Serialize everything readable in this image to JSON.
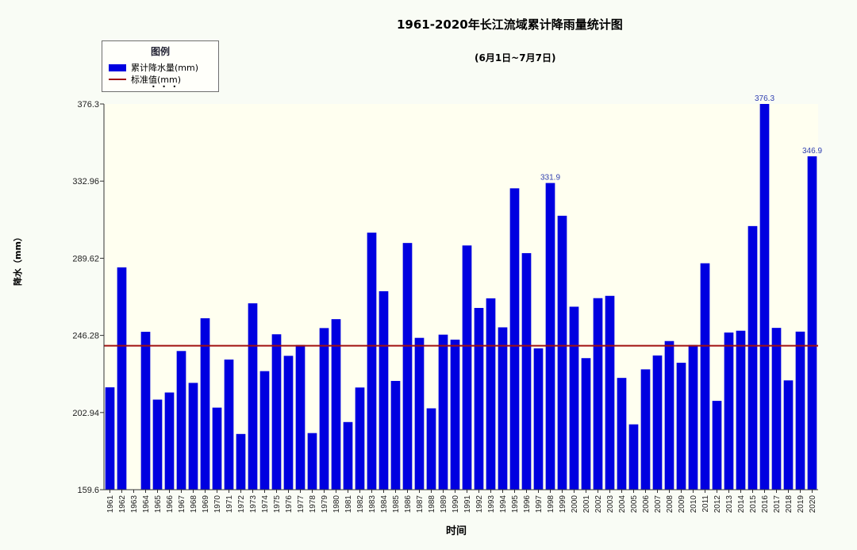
{
  "chart_data": {
    "type": "bar",
    "title": "1961-2020年长江流域累计降雨量统计图",
    "subtitle": "(6月1日~7月7日)",
    "xlabel": "时间",
    "ylabel": "降水（mm）",
    "ylim": [
      159.6,
      376.3
    ],
    "yticks": [
      "376.3",
      "332.96",
      "289.62",
      "246.28",
      "202.94",
      "159.6"
    ],
    "ytick_values": [
      376.3,
      332.96,
      289.62,
      246.28,
      202.94,
      159.6
    ],
    "legend_title": "图例",
    "legend_placement": "top-left",
    "series": [
      {
        "name": "累计降水量(mm)",
        "color": "#0000e0"
      },
      {
        "name": "标准值(mm)",
        "color": "#a01010",
        "value": 240.5
      }
    ],
    "categories": [
      "1961",
      "1962",
      "1963",
      "1964",
      "1965",
      "1966",
      "1967",
      "1968",
      "1969",
      "1970",
      "1971",
      "1972",
      "1973",
      "1974",
      "1975",
      "1976",
      "1977",
      "1978",
      "1979",
      "1980",
      "1981",
      "1982",
      "1983",
      "1984",
      "1985",
      "1986",
      "1987",
      "1988",
      "1989",
      "1990",
      "1991",
      "1992",
      "1993",
      "1994",
      "1995",
      "1996",
      "1997",
      "1998",
      "1999",
      "2000",
      "2001",
      "2002",
      "2003",
      "2004",
      "2005",
      "2006",
      "2007",
      "2008",
      "2009",
      "2010",
      "2011",
      "2012",
      "2013",
      "2014",
      "2015",
      "2016",
      "2017",
      "2018",
      "2019",
      "2020"
    ],
    "values": [
      217.1,
      284.5,
      159.6,
      248.3,
      210.2,
      214.2,
      237.5,
      219.6,
      255.9,
      205.7,
      232.7,
      190.9,
      264.3,
      226.2,
      246.9,
      234.8,
      240.9,
      191.4,
      250.4,
      255.4,
      197.6,
      217.0,
      304.0,
      271.1,
      220.7,
      298.2,
      244.9,
      205.3,
      246.7,
      243.9,
      296.8,
      261.7,
      267.1,
      250.8,
      328.9,
      292.5,
      239.0,
      331.9,
      313.5,
      262.4,
      233.5,
      267.2,
      268.5,
      222.4,
      196.3,
      227.2,
      235.0,
      243.1,
      230.9,
      240.9,
      286.8,
      209.5,
      247.9,
      248.9,
      307.7,
      376.3,
      250.5,
      221.0,
      248.4,
      346.9
    ],
    "data_labels": [
      {
        "category": "1998",
        "text": "331.9"
      },
      {
        "category": "2016",
        "text": "376.3"
      },
      {
        "category": "2020",
        "text": "346.9"
      }
    ],
    "grid": false
  }
}
